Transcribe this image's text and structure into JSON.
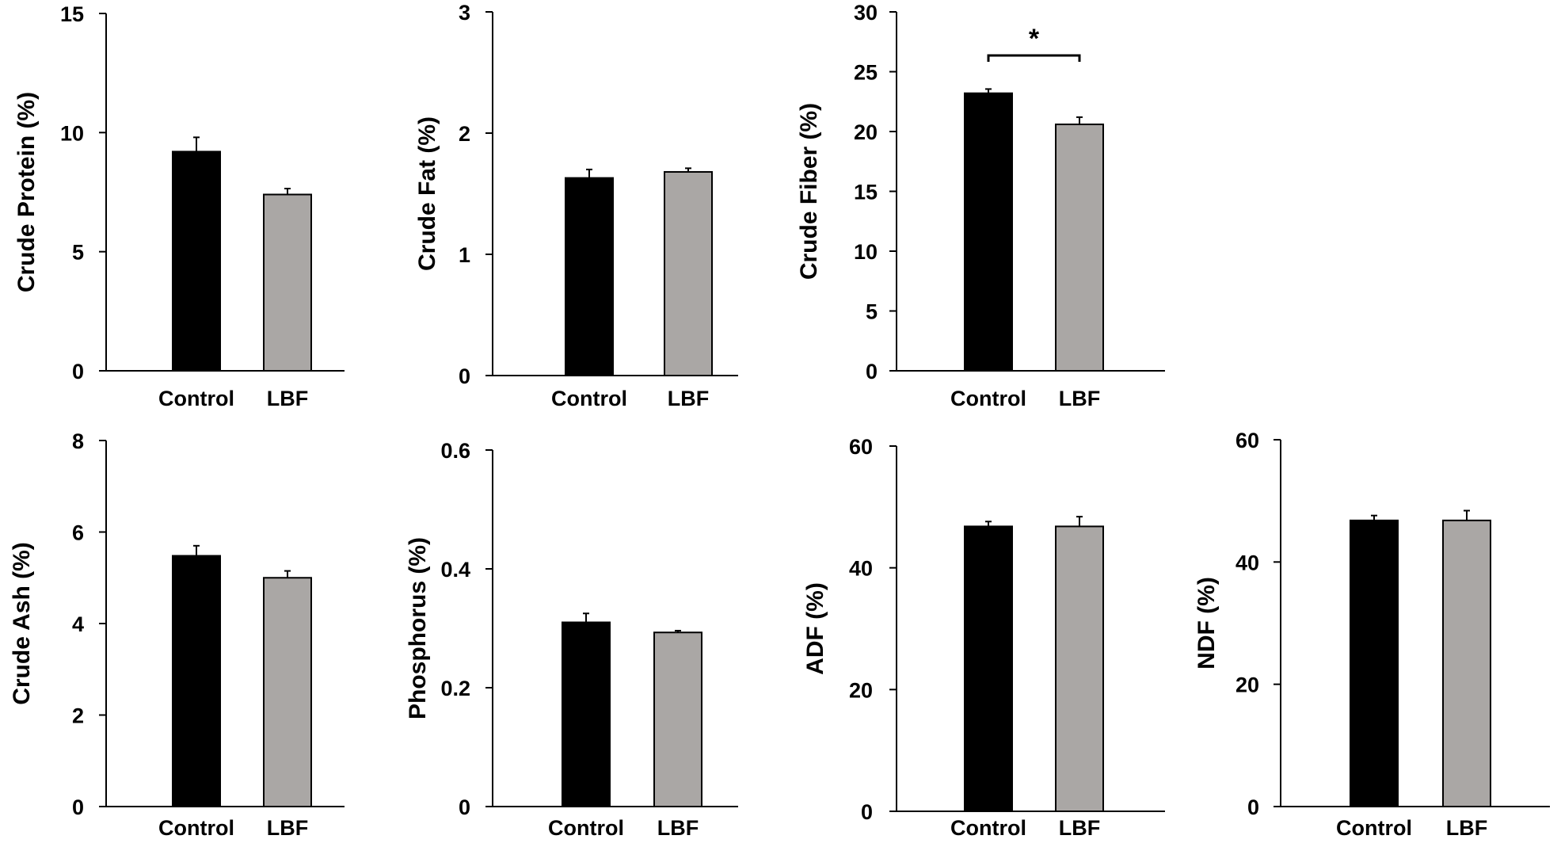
{
  "chart_data": [
    {
      "type": "bar",
      "title": "",
      "xlabel": "",
      "ylabel": "Crude Protein (%)",
      "categories": [
        "Control",
        "LBF"
      ],
      "values": [
        9.2,
        7.4
      ],
      "errors": [
        0.6,
        0.25
      ],
      "colors": [
        "#000000",
        "#aaa7a5"
      ],
      "ylim": [
        0,
        15
      ],
      "yticks": [
        "0",
        "5",
        "10",
        "15"
      ],
      "significance": null,
      "grid": false,
      "legend": "none"
    },
    {
      "type": "bar",
      "title": "",
      "xlabel": "",
      "ylabel": "Crude Fat (%)",
      "categories": [
        "Control",
        "LBF"
      ],
      "values": [
        1.63,
        1.68
      ],
      "errors": [
        0.07,
        0.03
      ],
      "colors": [
        "#000000",
        "#aaa7a5"
      ],
      "ylim": [
        0,
        3
      ],
      "yticks": [
        "0",
        "1",
        "2",
        "3"
      ],
      "significance": null,
      "grid": false,
      "legend": "none"
    },
    {
      "type": "bar",
      "title": "",
      "xlabel": "",
      "ylabel": "Crude Fiber (%)",
      "categories": [
        "Control",
        "LBF"
      ],
      "values": [
        23.2,
        20.6
      ],
      "errors": [
        0.35,
        0.6
      ],
      "colors": [
        "#000000",
        "#aaa7a5"
      ],
      "ylim": [
        0,
        30
      ],
      "yticks": [
        "0",
        "5",
        "10",
        "15",
        "20",
        "25",
        "30"
      ],
      "significance": "*",
      "grid": false,
      "legend": "none"
    },
    {
      "type": "bar",
      "title": "",
      "xlabel": "",
      "ylabel": "Crude Ash (%)",
      "categories": [
        "Control",
        "LBF"
      ],
      "values": [
        5.48,
        5.0
      ],
      "errors": [
        0.22,
        0.15
      ],
      "colors": [
        "#000000",
        "#aaa7a5"
      ],
      "ylim": [
        0,
        8
      ],
      "yticks": [
        "0",
        "2",
        "4",
        "6",
        "8"
      ],
      "significance": null,
      "grid": false,
      "legend": "none"
    },
    {
      "type": "bar",
      "title": "",
      "xlabel": "",
      "ylabel": "Phosphorus (%)",
      "categories": [
        "Control",
        "LBF"
      ],
      "values": [
        0.31,
        0.293
      ],
      "errors": [
        0.015,
        0.003
      ],
      "colors": [
        "#000000",
        "#aaa7a5"
      ],
      "ylim": [
        0,
        0.6
      ],
      "yticks": [
        "0",
        "0.2",
        "0.4",
        "0.6"
      ],
      "significance": null,
      "grid": false,
      "legend": "none"
    },
    {
      "type": "bar",
      "title": "",
      "xlabel": "",
      "ylabel": "ADF (%)",
      "categories": [
        "Control",
        "LBF"
      ],
      "values": [
        46.8,
        46.8
      ],
      "errors": [
        0.8,
        1.6
      ],
      "colors": [
        "#000000",
        "#aaa7a5"
      ],
      "ylim": [
        0,
        60
      ],
      "yticks": [
        "0",
        "20",
        "40",
        "60"
      ],
      "significance": null,
      "grid": false,
      "legend": "none"
    },
    {
      "type": "bar",
      "title": "",
      "xlabel": "",
      "ylabel": "NDF (%)",
      "categories": [
        "Control",
        "LBF"
      ],
      "values": [
        46.8,
        46.8
      ],
      "errors": [
        0.8,
        1.6
      ],
      "colors": [
        "#000000",
        "#aaa7a5"
      ],
      "ylim": [
        0,
        60
      ],
      "yticks": [
        "0",
        "20",
        "40",
        "60"
      ],
      "significance": null,
      "grid": false,
      "legend": "none"
    }
  ]
}
